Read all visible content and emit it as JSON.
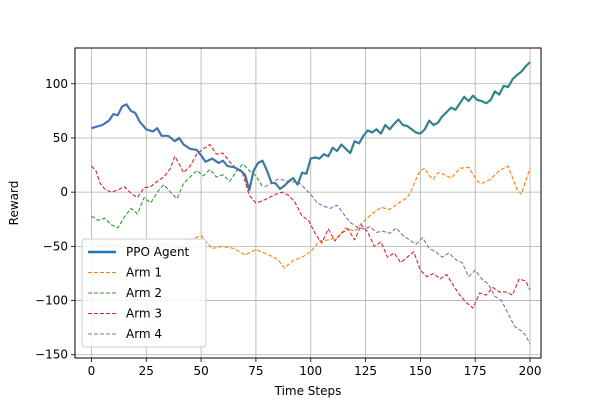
{
  "chart_data": {
    "type": "line",
    "title": "",
    "xlabel": "Time Steps",
    "ylabel": "Reward",
    "xlim": [
      -7.5,
      205
    ],
    "ylim": [
      -153,
      133
    ],
    "xticks": [
      0,
      25,
      50,
      75,
      100,
      125,
      150,
      175,
      200
    ],
    "yticks": [
      -150,
      -100,
      -50,
      0,
      50,
      100
    ],
    "grid": true,
    "legend_position": "lower-left",
    "series": [
      {
        "name": "PPO Agent",
        "style": "solid-thick",
        "color": "#1f77b4",
        "color_start": "#4a6fbd",
        "color_end": "#2a8a7c",
        "points": [
          [
            0,
            59
          ],
          [
            5,
            62
          ],
          [
            8,
            66
          ],
          [
            10,
            72
          ],
          [
            12,
            71
          ],
          [
            14,
            79
          ],
          [
            16,
            81
          ],
          [
            18,
            75
          ],
          [
            20,
            73
          ],
          [
            22,
            65
          ],
          [
            25,
            58
          ],
          [
            28,
            56
          ],
          [
            30,
            59
          ],
          [
            32,
            52
          ],
          [
            35,
            52
          ],
          [
            38,
            47
          ],
          [
            40,
            50
          ],
          [
            42,
            44
          ],
          [
            45,
            40
          ],
          [
            48,
            39
          ],
          [
            50,
            34
          ],
          [
            52,
            28
          ],
          [
            55,
            31
          ],
          [
            58,
            27
          ],
          [
            60,
            29
          ],
          [
            62,
            24
          ],
          [
            65,
            23
          ],
          [
            68,
            20
          ],
          [
            70,
            16
          ],
          [
            72,
            2
          ],
          [
            74,
            20
          ],
          [
            76,
            27
          ],
          [
            78,
            29
          ],
          [
            80,
            20
          ],
          [
            82,
            9
          ],
          [
            84,
            8
          ],
          [
            86,
            3
          ],
          [
            88,
            6
          ],
          [
            90,
            10
          ],
          [
            92,
            13
          ],
          [
            94,
            7
          ],
          [
            96,
            18
          ],
          [
            98,
            17
          ],
          [
            100,
            31
          ],
          [
            102,
            32
          ],
          [
            104,
            31
          ],
          [
            106,
            35
          ],
          [
            108,
            33
          ],
          [
            110,
            41
          ],
          [
            112,
            38
          ],
          [
            114,
            44
          ],
          [
            116,
            40
          ],
          [
            118,
            36
          ],
          [
            120,
            47
          ],
          [
            122,
            45
          ],
          [
            124,
            52
          ],
          [
            126,
            57
          ],
          [
            128,
            55
          ],
          [
            130,
            58
          ],
          [
            132,
            54
          ],
          [
            134,
            62
          ],
          [
            136,
            58
          ],
          [
            138,
            63
          ],
          [
            140,
            67
          ],
          [
            142,
            62
          ],
          [
            144,
            61
          ],
          [
            146,
            58
          ],
          [
            148,
            55
          ],
          [
            150,
            54
          ],
          [
            152,
            58
          ],
          [
            154,
            66
          ],
          [
            156,
            62
          ],
          [
            158,
            64
          ],
          [
            160,
            70
          ],
          [
            162,
            74
          ],
          [
            164,
            78
          ],
          [
            166,
            76
          ],
          [
            168,
            82
          ],
          [
            170,
            88
          ],
          [
            172,
            84
          ],
          [
            174,
            89
          ],
          [
            176,
            85
          ],
          [
            178,
            84
          ],
          [
            180,
            82
          ],
          [
            182,
            85
          ],
          [
            184,
            93
          ],
          [
            186,
            90
          ],
          [
            188,
            98
          ],
          [
            190,
            97
          ],
          [
            192,
            104
          ],
          [
            194,
            108
          ],
          [
            196,
            111
          ],
          [
            198,
            116
          ],
          [
            200,
            120
          ]
        ]
      },
      {
        "name": "Arm 1",
        "style": "dashed",
        "color": "#ff7f0e",
        "points": [
          [
            0,
            -47
          ],
          [
            5,
            -50
          ],
          [
            10,
            -48
          ],
          [
            15,
            -52
          ],
          [
            20,
            -47
          ],
          [
            25,
            -53
          ],
          [
            30,
            -51
          ],
          [
            35,
            -47
          ],
          [
            40,
            -52
          ],
          [
            45,
            -44
          ],
          [
            50,
            -40
          ],
          [
            55,
            -52
          ],
          [
            60,
            -50
          ],
          [
            65,
            -52
          ],
          [
            70,
            -58
          ],
          [
            75,
            -53
          ],
          [
            80,
            -57
          ],
          [
            85,
            -62
          ],
          [
            88,
            -70
          ],
          [
            92,
            -63
          ],
          [
            96,
            -60
          ],
          [
            100,
            -55
          ],
          [
            104,
            -45
          ],
          [
            108,
            -44
          ],
          [
            112,
            -42
          ],
          [
            116,
            -33
          ],
          [
            120,
            -36
          ],
          [
            124,
            -27
          ],
          [
            128,
            -20
          ],
          [
            132,
            -14
          ],
          [
            136,
            -16
          ],
          [
            140,
            -10
          ],
          [
            144,
            -5
          ],
          [
            146,
            2
          ],
          [
            148,
            12
          ],
          [
            150,
            20
          ],
          [
            152,
            22
          ],
          [
            154,
            15
          ],
          [
            156,
            12
          ],
          [
            158,
            18
          ],
          [
            160,
            17
          ],
          [
            164,
            13
          ],
          [
            168,
            22
          ],
          [
            172,
            23
          ],
          [
            176,
            10
          ],
          [
            178,
            8
          ],
          [
            182,
            12
          ],
          [
            186,
            20
          ],
          [
            190,
            24
          ],
          [
            194,
            3
          ],
          [
            196,
            -2
          ],
          [
            198,
            10
          ],
          [
            200,
            22
          ]
        ]
      },
      {
        "name": "Arm 2",
        "style": "dashed",
        "color": "#2ca02c",
        "points": [
          [
            0,
            -22
          ],
          [
            3,
            -26
          ],
          [
            6,
            -24
          ],
          [
            9,
            -30
          ],
          [
            12,
            -33
          ],
          [
            15,
            -23
          ],
          [
            18,
            -15
          ],
          [
            21,
            -20
          ],
          [
            24,
            -5
          ],
          [
            27,
            -10
          ],
          [
            30,
            0
          ],
          [
            33,
            7
          ],
          [
            36,
            0
          ],
          [
            39,
            -6
          ],
          [
            42,
            8
          ],
          [
            45,
            14
          ],
          [
            48,
            20
          ],
          [
            51,
            15
          ],
          [
            54,
            21
          ],
          [
            57,
            14
          ],
          [
            60,
            16
          ],
          [
            63,
            10
          ],
          [
            66,
            19
          ],
          [
            69,
            26
          ],
          [
            72,
            20
          ],
          [
            75,
            15
          ],
          [
            78,
            5
          ]
        ]
      },
      {
        "name": "Arm 3",
        "style": "dashed",
        "color": "#d62728",
        "points": [
          [
            0,
            24
          ],
          [
            2,
            20
          ],
          [
            4,
            8
          ],
          [
            6,
            3
          ],
          [
            9,
            0
          ],
          [
            12,
            2
          ],
          [
            15,
            5
          ],
          [
            18,
            -1
          ],
          [
            21,
            -5
          ],
          [
            24,
            4
          ],
          [
            27,
            5
          ],
          [
            30,
            10
          ],
          [
            33,
            14
          ],
          [
            36,
            22
          ],
          [
            38,
            33
          ],
          [
            40,
            26
          ],
          [
            42,
            18
          ],
          [
            45,
            24
          ],
          [
            48,
            35
          ],
          [
            51,
            40
          ],
          [
            54,
            44
          ],
          [
            57,
            35
          ],
          [
            60,
            36
          ],
          [
            63,
            28
          ],
          [
            66,
            22
          ],
          [
            69,
            17
          ],
          [
            72,
            -3
          ],
          [
            75,
            -10
          ],
          [
            78,
            -8
          ],
          [
            81,
            -5
          ],
          [
            84,
            -2
          ],
          [
            87,
            0
          ],
          [
            90,
            -3
          ],
          [
            93,
            -10
          ],
          [
            96,
            -22
          ],
          [
            99,
            -26
          ],
          [
            102,
            -38
          ],
          [
            105,
            -47
          ],
          [
            108,
            -34
          ],
          [
            111,
            -45
          ],
          [
            114,
            -38
          ],
          [
            117,
            -34
          ],
          [
            120,
            -44
          ],
          [
            123,
            -30
          ],
          [
            126,
            -37
          ],
          [
            129,
            -50
          ],
          [
            132,
            -46
          ],
          [
            135,
            -60
          ],
          [
            138,
            -56
          ],
          [
            141,
            -65
          ],
          [
            144,
            -60
          ],
          [
            147,
            -55
          ],
          [
            150,
            -72
          ],
          [
            153,
            -78
          ],
          [
            156,
            -75
          ],
          [
            159,
            -80
          ],
          [
            162,
            -76
          ],
          [
            165,
            -86
          ],
          [
            168,
            -95
          ],
          [
            171,
            -102
          ],
          [
            174,
            -107
          ],
          [
            177,
            -93
          ],
          [
            180,
            -95
          ],
          [
            183,
            -88
          ],
          [
            186,
            -92
          ],
          [
            189,
            -92
          ],
          [
            192,
            -95
          ],
          [
            195,
            -80
          ],
          [
            198,
            -82
          ],
          [
            200,
            -90
          ]
        ]
      },
      {
        "name": "Arm 4",
        "style": "dashed",
        "color": "#9467bd",
        "points": [
          [
            79,
            5
          ],
          [
            82,
            8
          ],
          [
            85,
            12
          ],
          [
            88,
            11
          ],
          [
            91,
            9
          ],
          [
            94,
            10
          ],
          [
            97,
            4
          ],
          [
            100,
            -2
          ],
          [
            103,
            -10
          ],
          [
            106,
            -13
          ],
          [
            109,
            -15
          ],
          [
            112,
            -12
          ],
          [
            115,
            -20
          ],
          [
            118,
            -28
          ],
          [
            121,
            -32
          ],
          [
            124,
            -34
          ],
          [
            127,
            -32
          ],
          [
            130,
            -37
          ],
          [
            133,
            -36
          ],
          [
            136,
            -38
          ],
          [
            139,
            -33
          ],
          [
            142,
            -40
          ],
          [
            145,
            -44
          ],
          [
            148,
            -48
          ],
          [
            151,
            -42
          ],
          [
            154,
            -52
          ],
          [
            157,
            -55
          ],
          [
            160,
            -60
          ],
          [
            163,
            -56
          ],
          [
            166,
            -62
          ],
          [
            169,
            -65
          ],
          [
            172,
            -78
          ],
          [
            175,
            -72
          ],
          [
            178,
            -80
          ],
          [
            181,
            -85
          ],
          [
            184,
            -96
          ],
          [
            187,
            -100
          ],
          [
            190,
            -112
          ],
          [
            193,
            -124
          ],
          [
            196,
            -128
          ],
          [
            198,
            -132
          ],
          [
            200,
            -140
          ]
        ]
      }
    ]
  }
}
